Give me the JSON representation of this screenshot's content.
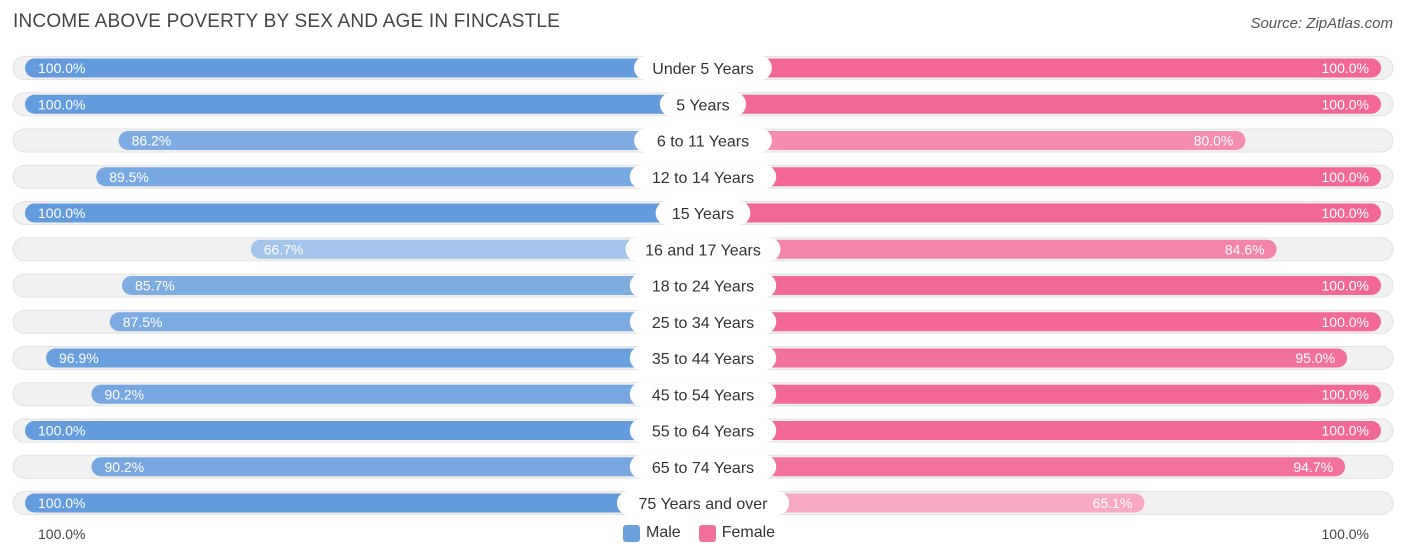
{
  "title": "INCOME ABOVE POVERTY BY SEX AND AGE IN FINCASTLE",
  "source": "Source: ZipAtlas.com",
  "axis": {
    "left_label": "100.0%",
    "right_label": "100.0%"
  },
  "legend": [
    {
      "name": "Male",
      "color": "#6a9fdc"
    },
    {
      "name": "Female",
      "color": "#f0709a"
    }
  ],
  "chart_data": {
    "type": "bar",
    "orientation": "horizontal-diverging",
    "title": "INCOME ABOVE POVERTY BY SEX AND AGE IN FINCASTLE",
    "categories": [
      "Under 5 Years",
      "5 Years",
      "6 to 11 Years",
      "12 to 14 Years",
      "15 Years",
      "16 and 17 Years",
      "18 to 24 Years",
      "25 to 34 Years",
      "35 to 44 Years",
      "45 to 54 Years",
      "55 to 64 Years",
      "65 to 74 Years",
      "75 Years and over"
    ],
    "series": [
      {
        "name": "Male",
        "values": [
          100.0,
          100.0,
          86.2,
          89.5,
          100.0,
          66.7,
          85.7,
          87.5,
          96.9,
          90.2,
          100.0,
          90.2,
          100.0
        ],
        "labels": [
          "100.0%",
          "100.0%",
          "86.2%",
          "89.5%",
          "100.0%",
          "66.7%",
          "85.7%",
          "87.5%",
          "96.9%",
          "90.2%",
          "100.0%",
          "90.2%",
          "100.0%"
        ]
      },
      {
        "name": "Female",
        "values": [
          100.0,
          100.0,
          80.0,
          100.0,
          100.0,
          84.6,
          100.0,
          100.0,
          95.0,
          100.0,
          100.0,
          94.7,
          65.1
        ],
        "labels": [
          "100.0%",
          "100.0%",
          "80.0%",
          "100.0%",
          "100.0%",
          "84.6%",
          "100.0%",
          "100.0%",
          "95.0%",
          "100.0%",
          "100.0%",
          "94.7%",
          "65.1%"
        ]
      }
    ],
    "xlim": [
      0,
      100
    ],
    "unit": "%"
  }
}
